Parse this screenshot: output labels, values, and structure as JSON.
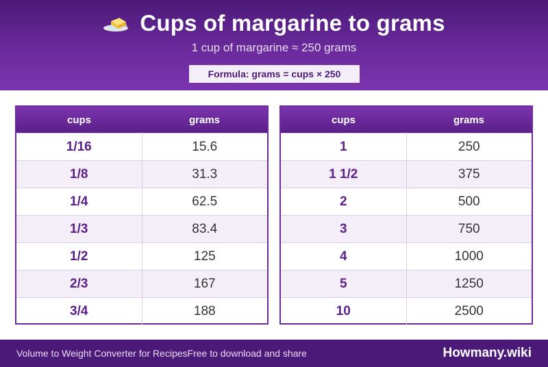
{
  "header": {
    "icon": "margarine-icon",
    "title": "Cups of margarine to grams",
    "subtitle": "1 cup of margarine ≈ 250 grams",
    "formula": "Formula: grams = cups × 250"
  },
  "tables": [
    {
      "headers": [
        "cups",
        "grams"
      ],
      "rows": [
        {
          "cups": "1/16",
          "grams": "15.6"
        },
        {
          "cups": "1/8",
          "grams": "31.3"
        },
        {
          "cups": "1/4",
          "grams": "62.5"
        },
        {
          "cups": "1/3",
          "grams": "83.4"
        },
        {
          "cups": "1/2",
          "grams": "125"
        },
        {
          "cups": "2/3",
          "grams": "167"
        },
        {
          "cups": "3/4",
          "grams": "188"
        }
      ]
    },
    {
      "headers": [
        "cups",
        "grams"
      ],
      "rows": [
        {
          "cups": "1",
          "grams": "250"
        },
        {
          "cups": "1 1/2",
          "grams": "375"
        },
        {
          "cups": "2",
          "grams": "500"
        },
        {
          "cups": "3",
          "grams": "750"
        },
        {
          "cups": "4",
          "grams": "1000"
        },
        {
          "cups": "5",
          "grams": "1250"
        },
        {
          "cups": "10",
          "grams": "2500"
        }
      ]
    }
  ],
  "footer": {
    "left_text": "Volume to Weight Converter for RecipesFree to download and share",
    "brand": "Howmany.wiki"
  },
  "colors": {
    "primary": "#6a2a9c",
    "dark": "#4b1a78",
    "accent_text": "#5a2088",
    "row_alt": "#f4eef9"
  }
}
